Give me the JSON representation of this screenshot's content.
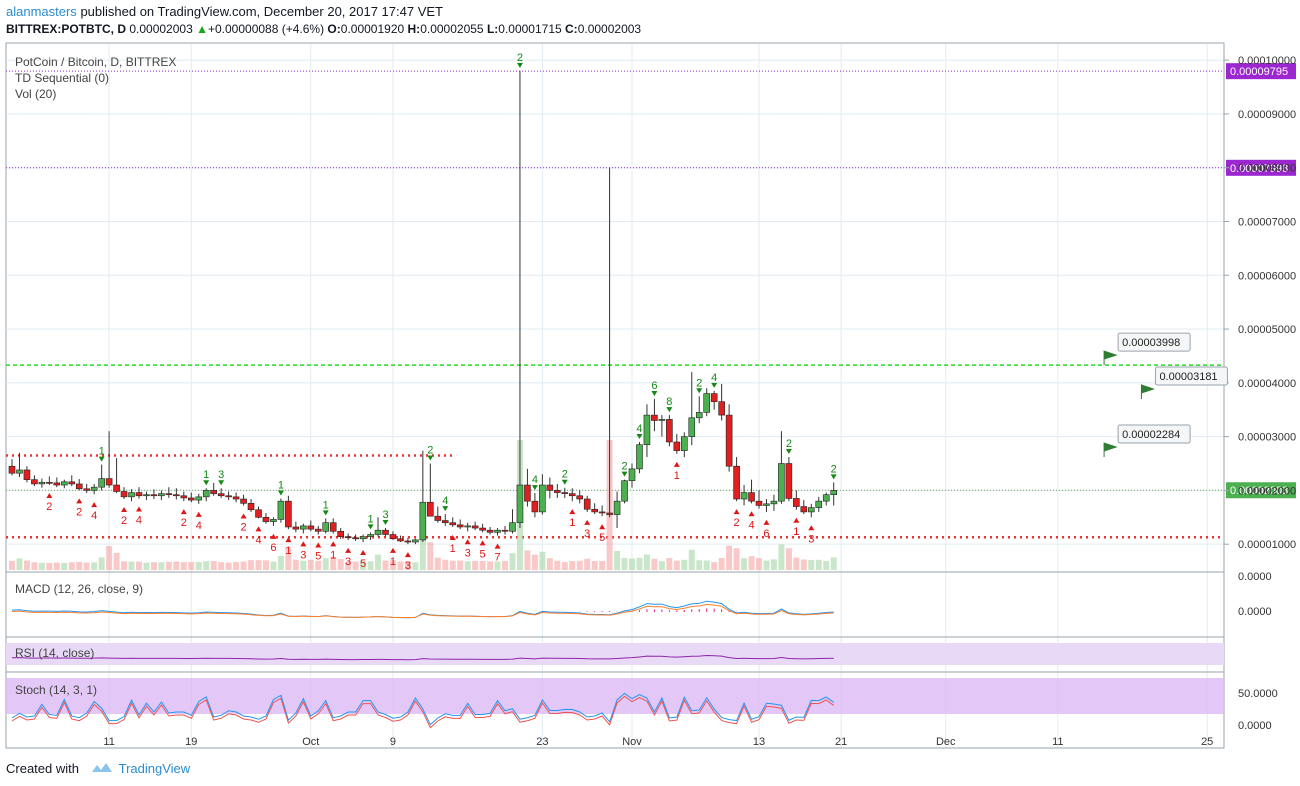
{
  "header": {
    "user": "alanmasters",
    "published_text": "published on TradingView.com, December 20, 2017 17:47 VET",
    "symbol": "BITTREX:POTBTC, D",
    "last": "0.00002003",
    "change": "+0.00000088 (+4.6%)",
    "o_label": "O:",
    "o": "0.00001920",
    "h_label": "H:",
    "h": "0.00002055",
    "l_label": "L:",
    "l": "0.00001715",
    "c_label": "C:",
    "c": "0.00002003"
  },
  "legend": {
    "main_title": "PotCoin / Bitcoin, D, BITTREX",
    "td_label": "TD Sequential (0)",
    "vol_label": "Vol (20)",
    "macd_label": "MACD (12, 26, close, 9)",
    "rsi_label": "RSI (14, close)",
    "stoch_label": "Stoch (14, 3, 1)"
  },
  "footer": {
    "created_with": "Created with",
    "brand": "TradingView"
  },
  "colors": {
    "up": "#4caf50",
    "down": "#e02020",
    "up_dark": "#1b5e20",
    "td_up": "#138a13",
    "td_down": "#e01515",
    "purple": "#9c27d0",
    "green_line": "#22dd22",
    "red_dots": "#ee3333",
    "macd": "#2196f3",
    "signal": "#ff7f2a",
    "hist": "#e0208a",
    "rsi": "#8e24aa",
    "rsi_band": "#e8d9f7",
    "stoch_band": "#dcb9f5",
    "stoch_k": "#2196f3",
    "stoch_d": "#ef5350",
    "grid": "#e1ecf2"
  },
  "chart_data": {
    "type": "candlestick",
    "title": "PotCoin / Bitcoin, D, BITTREX",
    "x_axis": {
      "ticks": [
        {
          "i": 13,
          "label": "11"
        },
        {
          "i": 24,
          "label": "19"
        },
        {
          "i": 40,
          "label": "Oct"
        },
        {
          "i": 51,
          "label": "9"
        },
        {
          "i": 71,
          "label": "23"
        },
        {
          "i": 83,
          "label": "Nov"
        },
        {
          "i": 100,
          "label": "13"
        },
        {
          "i": 111,
          "label": "21"
        },
        {
          "i": 125,
          "label": "Dec"
        },
        {
          "i": 140,
          "label": "11"
        },
        {
          "i": 160,
          "label": "25"
        }
      ]
    },
    "y_axis": {
      "range": [
        5.2e-06,
        0.000103
      ],
      "ticks": [
        "0.00001000",
        "0.00002000",
        "0.00003000",
        "0.00004000",
        "0.00005000",
        "0.00006000",
        "0.00007000",
        "0.00008000",
        "0.00009000",
        "0.00010000"
      ],
      "tick_values": [
        1e-05,
        2e-05,
        3e-05,
        4e-05,
        5e-05,
        6e-05,
        7e-05,
        8e-05,
        9e-05,
        0.0001
      ]
    },
    "horizontal_levels": [
      {
        "value": 9.795e-05,
        "label": "0.00009795",
        "style": "purple-dotted"
      },
      {
        "value": 7.998e-05,
        "label": "0.00007998",
        "style": "purple-dotted"
      },
      {
        "value": 4.33e-05,
        "style": "green-dashed"
      },
      {
        "value": 2.65e-05,
        "style": "red-dotted",
        "end_i": 59
      },
      {
        "value": 1.13e-05,
        "style": "red-dotted"
      },
      {
        "value": 2.003e-05,
        "label": "0.00002003",
        "style": "current"
      }
    ],
    "callouts": [
      "0.00003998",
      "0.00003181",
      "0.00002284"
    ],
    "candles": [
      [
        2.45e-05,
        2.58e-05,
        2.28e-05,
        2.32e-05
      ],
      [
        2.32e-05,
        2.7e-05,
        2.25e-05,
        2.38e-05
      ],
      [
        2.38e-05,
        2.45e-05,
        2.15e-05,
        2.2e-05
      ],
      [
        2.2e-05,
        2.28e-05,
        2.08e-05,
        2.12e-05
      ],
      [
        2.12e-05,
        2.22e-05,
        2.05e-05,
        2.15e-05
      ],
      [
        2.15e-05,
        2.26e-05,
        2.1e-05,
        2.14e-05
      ],
      [
        2.14e-05,
        2.24e-05,
        2.06e-05,
        2.1e-05
      ],
      [
        2.1e-05,
        2.2e-05,
        2.04e-05,
        2.16e-05
      ],
      [
        2.16e-05,
        2.28e-05,
        2.08e-05,
        2.12e-05
      ],
      [
        2.12e-05,
        2.21e-05,
        2e-05,
        2.03e-05
      ],
      [
        2.03e-05,
        2.12e-05,
        1.95e-05,
        2e-05
      ],
      [
        2e-05,
        2.12e-05,
        1.93e-05,
        2.06e-05
      ],
      [
        2.06e-05,
        2.48e-05,
        2e-05,
        2.22e-05
      ],
      [
        2.22e-05,
        3.1e-05,
        2.05e-05,
        2.1e-05
      ],
      [
        2.1e-05,
        2.6e-05,
        1.95e-05,
        1.98e-05
      ],
      [
        1.98e-05,
        2.06e-05,
        1.84e-05,
        1.88e-05
      ],
      [
        1.88e-05,
        2.02e-05,
        1.8e-05,
        1.96e-05
      ],
      [
        1.96e-05,
        2.06e-05,
        1.85e-05,
        1.9e-05
      ],
      [
        1.9e-05,
        1.98e-05,
        1.82e-05,
        1.92e-05
      ],
      [
        1.92e-05,
        2.02e-05,
        1.84e-05,
        1.9e-05
      ],
      [
        1.9e-05,
        2e-05,
        1.82e-05,
        1.94e-05
      ],
      [
        1.94e-05,
        2.06e-05,
        1.86e-05,
        1.92e-05
      ],
      [
        1.92e-05,
        2.04e-05,
        1.83e-05,
        1.9e-05
      ],
      [
        1.9e-05,
        1.98e-05,
        1.8e-05,
        1.86e-05
      ],
      [
        1.86e-05,
        1.96e-05,
        1.78e-05,
        1.82e-05
      ],
      [
        1.82e-05,
        1.94e-05,
        1.75e-05,
        1.88e-05
      ],
      [
        1.88e-05,
        2.04e-05,
        1.8e-05,
        2e-05
      ],
      [
        2e-05,
        2.14e-05,
        1.9e-05,
        1.94e-05
      ],
      [
        1.94e-05,
        2.04e-05,
        1.86e-05,
        1.9e-05
      ],
      [
        1.9e-05,
        1.98e-05,
        1.82e-05,
        1.88e-05
      ],
      [
        1.88e-05,
        1.96e-05,
        1.78e-05,
        1.84e-05
      ],
      [
        1.84e-05,
        1.92e-05,
        1.72e-05,
        1.76e-05
      ],
      [
        1.76e-05,
        1.84e-05,
        1.6e-05,
        1.64e-05
      ],
      [
        1.64e-05,
        1.7e-05,
        1.48e-05,
        1.5e-05
      ],
      [
        1.5e-05,
        1.58e-05,
        1.38e-05,
        1.42e-05
      ],
      [
        1.42e-05,
        1.5e-05,
        1.34e-05,
        1.46e-05
      ],
      [
        1.46e-05,
        1.85e-05,
        1.4e-05,
        1.8e-05
      ],
      [
        1.8e-05,
        1.9e-05,
        1.28e-05,
        1.32e-05
      ],
      [
        1.32e-05,
        1.42e-05,
        1.22e-05,
        1.28e-05
      ],
      [
        1.28e-05,
        1.38e-05,
        1.2e-05,
        1.34e-05
      ],
      [
        1.34e-05,
        1.44e-05,
        1.24e-05,
        1.28e-05
      ],
      [
        1.28e-05,
        1.34e-05,
        1.18e-05,
        1.24e-05
      ],
      [
        1.24e-05,
        1.48e-05,
        1.2e-05,
        1.4e-05
      ],
      [
        1.4e-05,
        1.48e-05,
        1.2e-05,
        1.24e-05
      ],
      [
        1.24e-05,
        1.3e-05,
        1.1e-05,
        1.14e-05
      ],
      [
        1.14e-05,
        1.2e-05,
        1.08e-05,
        1.12e-05
      ],
      [
        1.12e-05,
        1.18e-05,
        1.06e-05,
        1.1e-05
      ],
      [
        1.1e-05,
        1.18e-05,
        1.04e-05,
        1.14e-05
      ],
      [
        1.14e-05,
        1.22e-05,
        1.08e-05,
        1.18e-05
      ],
      [
        1.18e-05,
        1.5e-05,
        1.14e-05,
        1.26e-05
      ],
      [
        1.26e-05,
        1.3e-05,
        1.14e-05,
        1.18e-05
      ],
      [
        1.18e-05,
        1.24e-05,
        1.08e-05,
        1.1e-05
      ],
      [
        1.1e-05,
        1.16e-05,
        1.04e-05,
        1.06e-05
      ],
      [
        1.06e-05,
        1.12e-05,
        1e-05,
        1.04e-05
      ],
      [
        1.04e-05,
        1.1e-05,
        1e-05,
        1.08e-05
      ],
      [
        1.08e-05,
        2.74e-05,
        1.04e-05,
        1.78e-05
      ],
      [
        1.78e-05,
        2.5e-05,
        1.6e-05,
        1.52e-05
      ],
      [
        1.52e-05,
        1.7e-05,
        1.4e-05,
        1.44e-05
      ],
      [
        1.44e-05,
        1.56e-05,
        1.34e-05,
        1.4e-05
      ],
      [
        1.4e-05,
        1.5e-05,
        1.32e-05,
        1.36e-05
      ],
      [
        1.36e-05,
        1.46e-05,
        1.28e-05,
        1.32e-05
      ],
      [
        1.32e-05,
        1.4e-05,
        1.24e-05,
        1.34e-05
      ],
      [
        1.34e-05,
        1.42e-05,
        1.26e-05,
        1.3e-05
      ],
      [
        1.3e-05,
        1.38e-05,
        1.22e-05,
        1.26e-05
      ],
      [
        1.26e-05,
        1.32e-05,
        1.18e-05,
        1.22e-05
      ],
      [
        1.22e-05,
        1.3e-05,
        1.16e-05,
        1.26e-05
      ],
      [
        1.26e-05,
        1.34e-05,
        1.18e-05,
        1.24e-05
      ],
      [
        1.24e-05,
        1.65e-05,
        1.2e-05,
        1.4e-05
      ],
      [
        1.4e-05,
        9.8e-05,
        1.3e-05,
        2.1e-05
      ],
      [
        2.1e-05,
        2.4e-05,
        1.7e-05,
        1.8e-05
      ],
      [
        1.8e-05,
        1.95e-05,
        1.5e-05,
        1.6e-05
      ],
      [
        1.6e-05,
        2.3e-05,
        1.55e-05,
        2.1e-05
      ],
      [
        2.1e-05,
        2.24e-05,
        1.85e-05,
        2e-05
      ],
      [
        2e-05,
        2.12e-05,
        1.86e-05,
        1.96e-05
      ],
      [
        1.96e-05,
        2.05e-05,
        1.86e-05,
        1.94e-05
      ],
      [
        1.94e-05,
        2.04e-05,
        1.8e-05,
        1.9e-05
      ],
      [
        1.9e-05,
        2e-05,
        1.76e-05,
        1.84e-05
      ],
      [
        1.84e-05,
        1.9e-05,
        1.6e-05,
        1.65e-05
      ],
      [
        1.65e-05,
        1.76e-05,
        1.56e-05,
        1.6e-05
      ],
      [
        1.6e-05,
        1.72e-05,
        1.52e-05,
        1.58e-05
      ],
      [
        1.58e-05,
        8e-05,
        1.5e-05,
        1.55e-05
      ],
      [
        1.55e-05,
        1.98e-05,
        1.3e-05,
        1.8e-05
      ],
      [
        1.8e-05,
        2.2e-05,
        1.76e-05,
        2.18e-05
      ],
      [
        2.18e-05,
        2.5e-05,
        2.05e-05,
        2.4e-05
      ],
      [
        2.4e-05,
        2.9e-05,
        2.32e-05,
        2.85e-05
      ],
      [
        2.85e-05,
        3.6e-05,
        2.62e-05,
        3.4e-05
      ],
      [
        3.4e-05,
        3.7e-05,
        3.1e-05,
        3.3e-05
      ],
      [
        3.3e-05,
        3.4e-05,
        3e-05,
        3.32e-05
      ],
      [
        3.32e-05,
        3.4e-05,
        2.82e-05,
        2.9e-05
      ],
      [
        2.9e-05,
        3.05e-05,
        2.68e-05,
        2.74e-05
      ],
      [
        2.74e-05,
        3.08e-05,
        2.62e-05,
        3e-05
      ],
      [
        3e-05,
        4.2e-05,
        2.84e-05,
        3.35e-05
      ],
      [
        3.35e-05,
        3.75e-05,
        3.25e-05,
        3.45e-05
      ],
      [
        3.45e-05,
        3.9e-05,
        3.38e-05,
        3.8e-05
      ],
      [
        3.8e-05,
        3.85e-05,
        3.5e-05,
        3.65e-05
      ],
      [
        3.65e-05,
        3.98e-05,
        3.3e-05,
        3.4e-05
      ],
      [
        3.4e-05,
        3.6e-05,
        2.35e-05,
        2.45e-05
      ],
      [
        2.45e-05,
        2.62e-05,
        1.8e-05,
        1.84e-05
      ],
      [
        1.84e-05,
        2.1e-05,
        1.72e-05,
        1.96e-05
      ],
      [
        1.96e-05,
        2.2e-05,
        1.76e-05,
        1.8e-05
      ],
      [
        1.8e-05,
        2e-05,
        1.66e-05,
        1.72e-05
      ],
      [
        1.72e-05,
        1.84e-05,
        1.6e-05,
        1.75e-05
      ],
      [
        1.75e-05,
        1.92e-05,
        1.62e-05,
        1.8e-05
      ],
      [
        1.8e-05,
        3.1e-05,
        1.75e-05,
        2.5e-05
      ],
      [
        2.5e-05,
        2.62e-05,
        1.8e-05,
        1.85e-05
      ],
      [
        1.85e-05,
        2e-05,
        1.64e-05,
        1.7e-05
      ],
      [
        1.7e-05,
        1.82e-05,
        1.56e-05,
        1.6e-05
      ],
      [
        1.6e-05,
        1.75e-05,
        1.5e-05,
        1.68e-05
      ],
      [
        1.68e-05,
        1.88e-05,
        1.6e-05,
        1.8e-05
      ],
      [
        1.8e-05,
        1.96e-05,
        1.72e-05,
        1.92e-05
      ],
      [
        1.92e-05,
        2.15e-05,
        1.72e-05,
        2e-05
      ]
    ]
  }
}
